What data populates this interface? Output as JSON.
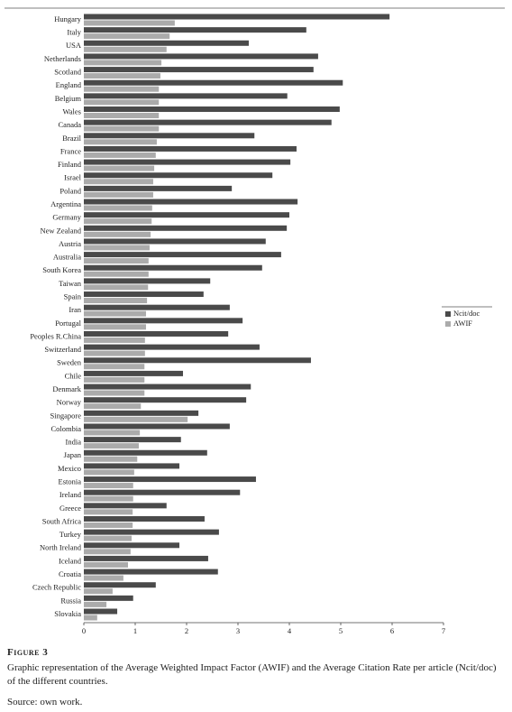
{
  "chart_data": {
    "type": "bar",
    "orientation": "horizontal",
    "categories": [
      "Hungary",
      "Italy",
      "USA",
      "Netherlands",
      "Scotland",
      "England",
      "Belgium",
      "Wales",
      "Canada",
      "Brazil",
      "France",
      "Finland",
      "Israel",
      "Poland",
      "Argentina",
      "Germany",
      "New Zealand",
      "Austria",
      "Australia",
      "South Korea",
      "Taiwan",
      "Spain",
      "Iran",
      "Portugal",
      "Peoples R.China",
      "Switzerland",
      "Sweden",
      "Chile",
      "Denmark",
      "Norway",
      "Singapore",
      "Colombia",
      "India",
      "Japan",
      "Mexico",
      "Estonia",
      "Ireland",
      "Greece",
      "South Africa",
      "Turkey",
      "North Ireland",
      "Iceland",
      "Croatia",
      "Czech Republic",
      "Russia",
      "Slovakia"
    ],
    "series": [
      {
        "name": "Ncit/doc",
        "color": "#4a4a4a",
        "values": [
          5.95,
          4.33,
          3.21,
          4.56,
          4.47,
          5.04,
          3.96,
          4.98,
          4.82,
          3.32,
          4.14,
          4.02,
          3.67,
          2.88,
          4.16,
          4.0,
          3.95,
          3.54,
          3.84,
          3.47,
          2.46,
          2.33,
          2.84,
          3.09,
          2.81,
          3.42,
          4.42,
          1.93,
          3.25,
          3.16,
          2.23,
          2.84,
          1.89,
          2.4,
          1.86,
          3.35,
          3.04,
          1.61,
          2.35,
          2.63,
          1.86,
          2.42,
          2.61,
          1.4,
          0.96,
          0.65
        ]
      },
      {
        "name": "AWIF",
        "color": "#ababab",
        "values": [
          1.77,
          1.67,
          1.61,
          1.51,
          1.49,
          1.46,
          1.46,
          1.46,
          1.46,
          1.42,
          1.4,
          1.37,
          1.35,
          1.35,
          1.33,
          1.32,
          1.3,
          1.28,
          1.26,
          1.26,
          1.25,
          1.23,
          1.21,
          1.21,
          1.19,
          1.19,
          1.18,
          1.18,
          1.18,
          1.11,
          2.02,
          1.09,
          1.07,
          1.04,
          0.98,
          0.96,
          0.96,
          0.95,
          0.95,
          0.93,
          0.91,
          0.86,
          0.77,
          0.56,
          0.44,
          0.26
        ]
      }
    ],
    "xlim": [
      0,
      7
    ],
    "xticks": [
      0,
      1,
      2,
      3,
      4,
      5,
      6,
      7
    ],
    "legend": "right",
    "figure_label": "Figure 3",
    "caption": "Graphic representation of the Average Weighted Impact Factor (AWIF) and the Average Citation Rate per article (Ncit/doc) of the different countries.",
    "source": "Source: own work."
  }
}
